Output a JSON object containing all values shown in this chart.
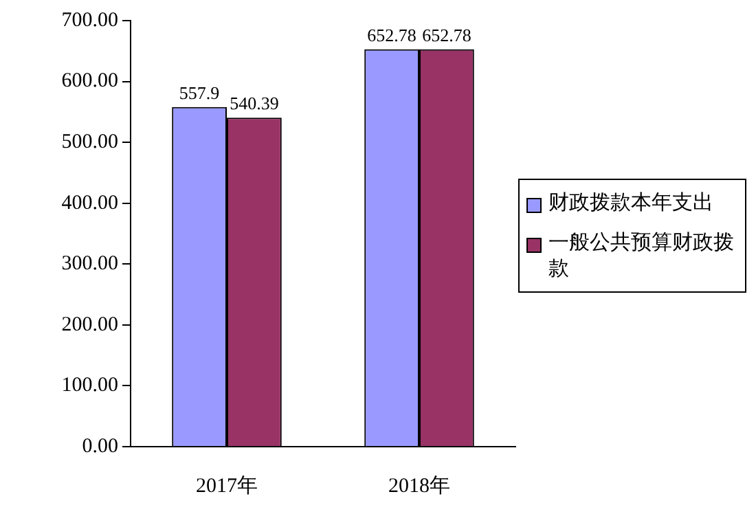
{
  "chart_data": {
    "type": "bar",
    "categories": [
      "2017年",
      "2018年"
    ],
    "series": [
      {
        "name": "财政拨款本年支出",
        "color": "#9999ff",
        "values": [
          557.9,
          652.78
        ],
        "value_labels": [
          "557.9",
          "652.78"
        ]
      },
      {
        "name": "一般公共预算财政拨款",
        "color": "#993366",
        "values": [
          540.39,
          652.78
        ],
        "value_labels": [
          "540.39",
          "652.78"
        ]
      }
    ],
    "ylim": [
      0,
      700
    ],
    "yticks": [
      {
        "value": 0,
        "label": "0.00"
      },
      {
        "value": 100,
        "label": "100.00"
      },
      {
        "value": 200,
        "label": "200.00"
      },
      {
        "value": 300,
        "label": "300.00"
      },
      {
        "value": 400,
        "label": "400.00"
      },
      {
        "value": 500,
        "label": "500.00"
      },
      {
        "value": 600,
        "label": "600.00"
      },
      {
        "value": 700,
        "label": "700.00"
      }
    ],
    "grid": false,
    "legend": "right"
  }
}
